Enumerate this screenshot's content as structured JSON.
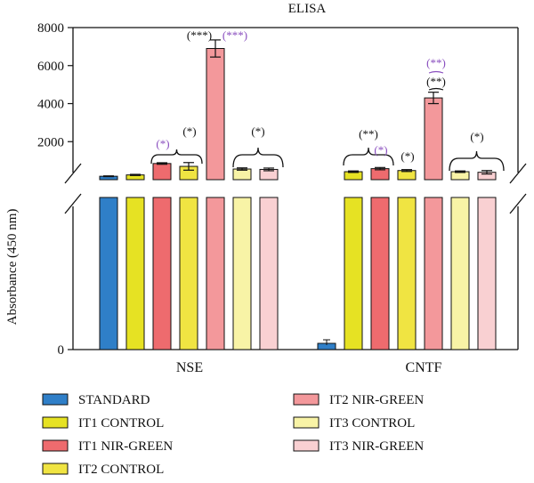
{
  "chart_data": {
    "type": "bar",
    "title": "ELISA",
    "ylabel": "Absorbance (450 nm)",
    "xlabel": "",
    "ylim": [
      0,
      8000
    ],
    "broken_axis": true,
    "y_ticks": [
      "0",
      "2000",
      "4000",
      "6000",
      "8000"
    ],
    "categories": [
      "NSE",
      "CNTF"
    ],
    "legend_placement": "bottom",
    "series": [
      {
        "name": "STANDARD",
        "color": "#2f7fc8",
        "values": [
          180,
          60
        ],
        "errors": [
          20,
          25
        ]
      },
      {
        "name": "IT1 CONTROL",
        "color": "#e6e223",
        "values": [
          250,
          420
        ],
        "errors": [
          30,
          40
        ]
      },
      {
        "name": "IT1 NIR-GREEN",
        "color": "#ee6b6e",
        "values": [
          850,
          580
        ],
        "errors": [
          40,
          60
        ]
      },
      {
        "name": "IT2 CONTROL",
        "color": "#f0e442",
        "values": [
          700,
          480
        ],
        "errors": [
          200,
          50
        ]
      },
      {
        "name": "IT2 NIR-GREEN",
        "color": "#f3989b",
        "values": [
          6900,
          4300
        ],
        "errors": [
          450,
          300
        ]
      },
      {
        "name": "IT3 CONTROL",
        "color": "#f8f3a6",
        "values": [
          560,
          420
        ],
        "errors": [
          60,
          40
        ]
      },
      {
        "name": "IT3 NIR-GREEN",
        "color": "#f9d0d2",
        "values": [
          540,
          390
        ],
        "errors": [
          70,
          90
        ]
      }
    ],
    "annotations": [
      {
        "text": "(*)",
        "color": "#8a4fbf",
        "category": "NSE",
        "series": "IT1 NIR-GREEN"
      },
      {
        "text": "(*)",
        "color": "#111111",
        "category": "NSE",
        "series": "IT2 CONTROL"
      },
      {
        "text": "(***)",
        "color": "#111111",
        "category": "NSE",
        "series": "IT2 NIR-GREEN"
      },
      {
        "text": "(***)",
        "color": "#8a4fbf",
        "category": "NSE",
        "series": "IT2 NIR-GREEN"
      },
      {
        "text": "(*)",
        "color": "#111111",
        "category": "NSE",
        "series": "IT3"
      },
      {
        "text": "(**)",
        "color": "#111111",
        "category": "CNTF",
        "series": "IT1"
      },
      {
        "text": "(*)",
        "color": "#8a4fbf",
        "category": "CNTF",
        "series": "IT1 NIR-GREEN"
      },
      {
        "text": "(*)",
        "color": "#111111",
        "category": "CNTF",
        "series": "IT2 CONTROL"
      },
      {
        "text": "(**)",
        "color": "#8a4fbf",
        "category": "CNTF",
        "series": "IT2 NIR-GREEN"
      },
      {
        "text": "(**)",
        "color": "#111111",
        "category": "CNTF",
        "series": "IT2 NIR-GREEN"
      },
      {
        "text": "(*)",
        "color": "#111111",
        "category": "CNTF",
        "series": "IT3"
      }
    ]
  }
}
